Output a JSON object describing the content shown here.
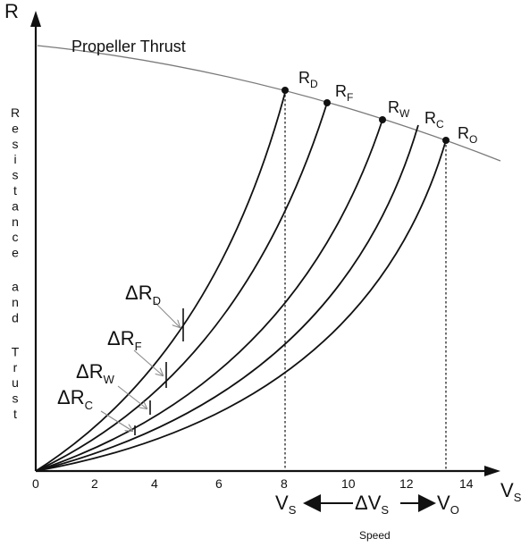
{
  "axes": {
    "y_title": "R",
    "x_title": "VS",
    "y_caption_line1": "Resistance",
    "y_caption_line2": "and",
    "y_caption_line3": "Trust",
    "x_caption": "Speed",
    "x_ticks": [
      "0",
      "2",
      "4",
      "6",
      "8",
      "10",
      "12",
      "14"
    ]
  },
  "thrust_label": "Propeller Thrust",
  "curve_labels": [
    {
      "main": "R",
      "sub": "D"
    },
    {
      "main": "R",
      "sub": "F"
    },
    {
      "main": "R",
      "sub": "W"
    },
    {
      "main": "R",
      "sub": "C"
    },
    {
      "main": "R",
      "sub": "O"
    }
  ],
  "delta_labels": [
    {
      "main": "ΔR",
      "sub": "D"
    },
    {
      "main": "ΔR",
      "sub": "F"
    },
    {
      "main": "ΔR",
      "sub": "W"
    },
    {
      "main": "ΔR",
      "sub": "C"
    }
  ],
  "speed_labels": {
    "vs_main": "V",
    "vs_sub": "S",
    "dvs_main": "ΔV",
    "dvs_sub": "S",
    "vo_main": "V",
    "vo_sub": "O"
  }
}
